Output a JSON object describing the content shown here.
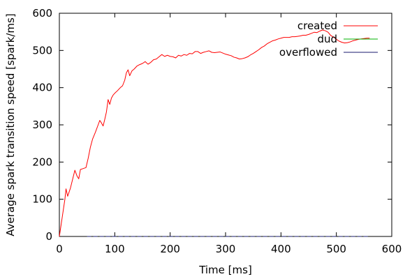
{
  "chart_data": {
    "type": "line",
    "title": "",
    "xlabel": "Time [ms]",
    "ylabel": "Average spark transition speed [spark/ms]",
    "xlim": [
      0,
      600
    ],
    "ylim": [
      0,
      600
    ],
    "x_ticks": [
      "0",
      "100",
      "200",
      "300",
      "400",
      "500",
      "600"
    ],
    "y_ticks": [
      "0",
      "100",
      "200",
      "300",
      "400",
      "500",
      "600"
    ],
    "grid": false,
    "legend_position": "top-right",
    "series": [
      {
        "name": "created",
        "color": "#ff0000",
        "points": [
          [
            0,
            0
          ],
          [
            5,
            50
          ],
          [
            10,
            100
          ],
          [
            12,
            128
          ],
          [
            15,
            108
          ],
          [
            20,
            130
          ],
          [
            25,
            160
          ],
          [
            28,
            178
          ],
          [
            30,
            170
          ],
          [
            32,
            162
          ],
          [
            35,
            155
          ],
          [
            38,
            180
          ],
          [
            42,
            182
          ],
          [
            48,
            185
          ],
          [
            52,
            210
          ],
          [
            56,
            240
          ],
          [
            60,
            262
          ],
          [
            65,
            280
          ],
          [
            70,
            300
          ],
          [
            73,
            312
          ],
          [
            76,
            305
          ],
          [
            79,
            297
          ],
          [
            82,
            315
          ],
          [
            85,
            335
          ],
          [
            88,
            368
          ],
          [
            91,
            355
          ],
          [
            94,
            372
          ],
          [
            97,
            380
          ],
          [
            100,
            385
          ],
          [
            105,
            392
          ],
          [
            110,
            400
          ],
          [
            114,
            405
          ],
          [
            118,
            420
          ],
          [
            121,
            440
          ],
          [
            124,
            448
          ],
          [
            127,
            432
          ],
          [
            131,
            445
          ],
          [
            135,
            450
          ],
          [
            140,
            458
          ],
          [
            145,
            462
          ],
          [
            150,
            465
          ],
          [
            155,
            470
          ],
          [
            160,
            463
          ],
          [
            165,
            468
          ],
          [
            170,
            475
          ],
          [
            175,
            477
          ],
          [
            180,
            483
          ],
          [
            185,
            489
          ],
          [
            190,
            484
          ],
          [
            195,
            487
          ],
          [
            200,
            484
          ],
          [
            205,
            483
          ],
          [
            210,
            480
          ],
          [
            215,
            487
          ],
          [
            220,
            485
          ],
          [
            225,
            489
          ],
          [
            230,
            487
          ],
          [
            235,
            492
          ],
          [
            240,
            491
          ],
          [
            245,
            497
          ],
          [
            250,
            497
          ],
          [
            255,
            492
          ],
          [
            260,
            495
          ],
          [
            265,
            497
          ],
          [
            270,
            499
          ],
          [
            275,
            495
          ],
          [
            280,
            494
          ],
          [
            285,
            495
          ],
          [
            290,
            496
          ],
          [
            295,
            493
          ],
          [
            300,
            490
          ],
          [
            305,
            488
          ],
          [
            310,
            486
          ],
          [
            315,
            482
          ],
          [
            320,
            480
          ],
          [
            325,
            477
          ],
          [
            330,
            478
          ],
          [
            335,
            480
          ],
          [
            340,
            483
          ],
          [
            345,
            488
          ],
          [
            350,
            492
          ],
          [
            355,
            497
          ],
          [
            360,
            502
          ],
          [
            365,
            508
          ],
          [
            370,
            512
          ],
          [
            375,
            518
          ],
          [
            380,
            522
          ],
          [
            385,
            526
          ],
          [
            390,
            528
          ],
          [
            395,
            531
          ],
          [
            400,
            533
          ],
          [
            405,
            535
          ],
          [
            410,
            535
          ],
          [
            415,
            535
          ],
          [
            420,
            537
          ],
          [
            425,
            537
          ],
          [
            430,
            538
          ],
          [
            435,
            539
          ],
          [
            440,
            541
          ],
          [
            445,
            541
          ],
          [
            450,
            543
          ],
          [
            455,
            546
          ],
          [
            460,
            549
          ],
          [
            465,
            548
          ],
          [
            470,
            552
          ],
          [
            475,
            555
          ],
          [
            480,
            553
          ],
          [
            485,
            549
          ],
          [
            490,
            540
          ],
          [
            495,
            536
          ],
          [
            500,
            530
          ],
          [
            505,
            525
          ],
          [
            510,
            522
          ],
          [
            515,
            520
          ],
          [
            520,
            521
          ],
          [
            525,
            523
          ],
          [
            530,
            526
          ],
          [
            535,
            528
          ],
          [
            540,
            530
          ],
          [
            545,
            531
          ],
          [
            550,
            532
          ],
          [
            555,
            533
          ],
          [
            560,
            533
          ]
        ]
      },
      {
        "name": "dud",
        "color": "#00b000",
        "points": [
          [
            50,
            0
          ],
          [
            560,
            0
          ]
        ]
      },
      {
        "name": "overflowed",
        "color": "#1a1a6e",
        "points": [
          [
            50,
            0
          ],
          [
            560,
            0
          ]
        ]
      }
    ]
  }
}
